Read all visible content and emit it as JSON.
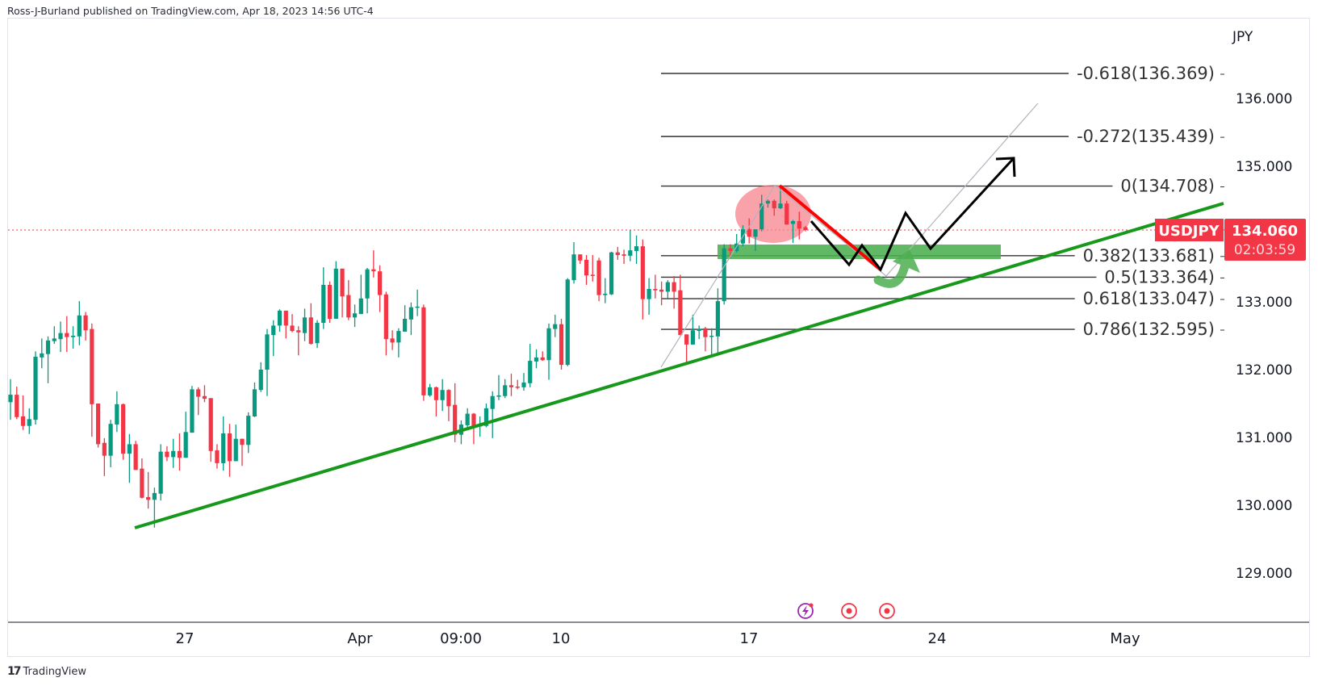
{
  "header": {
    "text": "Ross-J-Burland published on TradingView.com, Apr 18, 2023 14:56 UTC-4"
  },
  "footer": {
    "logo_text": "TradingView",
    "logo_mark": "17"
  },
  "symbol": {
    "name": "USDJPY",
    "last_price": "134.060",
    "countdown": "02:03:59",
    "currency": "JPY"
  },
  "colors": {
    "up": "#089981",
    "down": "#f23645",
    "trendline": "#16991a",
    "zone": "#4caf50",
    "highlight": "#f7838e",
    "bias_arrow": "#000000",
    "fib_line": "#333333"
  },
  "bottom_icons": [
    {
      "name": "lightning-event-icon",
      "color": "#9c27b0"
    },
    {
      "name": "economic-event-icon",
      "color": "#f23645"
    },
    {
      "name": "economic-event-icon",
      "color": "#f23645"
    }
  ],
  "fib_levels": [
    {
      "label": "-0.618(136.369)",
      "price": 136.369
    },
    {
      "label": "-0.272(135.439)",
      "price": 135.439
    },
    {
      "label": "0(134.708)",
      "price": 134.708
    },
    {
      "label": "0.382(133.681)",
      "price": 133.681
    },
    {
      "label": "0.5(133.364)",
      "price": 133.364
    },
    {
      "label": "0.618(133.047)",
      "price": 133.047
    },
    {
      "label": "0.786(132.595)",
      "price": 132.595
    }
  ],
  "chart_data": {
    "type": "candlestick",
    "title": "",
    "symbol": "USDJPY",
    "ylabel": "JPY",
    "ylim": [
      128.4,
      136.5
    ],
    "y_ticks": [
      "136.000",
      "135.000",
      "133.000",
      "132.000",
      "131.000",
      "130.000",
      "129.000"
    ],
    "y_tick_values": [
      136,
      135,
      133,
      132,
      131,
      130,
      129
    ],
    "x_ticks": [
      "27",
      "Apr",
      "09:00",
      "10",
      "17",
      "24",
      "May"
    ],
    "grid": false,
    "ohlc_fields": [
      "open",
      "high",
      "low",
      "close"
    ],
    "candles": [
      [
        131.52,
        131.86,
        131.26,
        131.63
      ],
      [
        131.63,
        131.75,
        131.27,
        131.3
      ],
      [
        131.31,
        131.62,
        131.11,
        131.17
      ],
      [
        131.17,
        131.43,
        131.05,
        131.27
      ],
      [
        131.26,
        132.27,
        131.19,
        132.19
      ],
      [
        132.18,
        132.46,
        132.02,
        132.24
      ],
      [
        132.23,
        132.49,
        131.8,
        132.43
      ],
      [
        132.42,
        132.64,
        132.38,
        132.46
      ],
      [
        132.45,
        132.71,
        132.26,
        132.54
      ],
      [
        132.54,
        132.79,
        132.26,
        132.48
      ],
      [
        132.48,
        132.64,
        132.31,
        132.5
      ],
      [
        132.49,
        133.01,
        132.36,
        132.8
      ],
      [
        132.8,
        132.85,
        132.43,
        132.58
      ],
      [
        132.6,
        132.68,
        131.01,
        131.49
      ],
      [
        131.5,
        131.5,
        130.85,
        130.9
      ],
      [
        130.92,
        130.99,
        130.43,
        130.73
      ],
      [
        130.73,
        131.26,
        130.56,
        131.2
      ],
      [
        131.19,
        131.68,
        131.08,
        131.49
      ],
      [
        131.49,
        131.5,
        130.67,
        130.76
      ],
      [
        130.76,
        131.05,
        130.33,
        130.9
      ],
      [
        130.9,
        130.95,
        130.52,
        130.52
      ],
      [
        130.54,
        130.69,
        130.1,
        130.11
      ],
      [
        130.12,
        130.49,
        129.95,
        130.08
      ],
      [
        130.08,
        130.26,
        129.67,
        130.18
      ],
      [
        130.17,
        130.9,
        130.07,
        130.79
      ],
      [
        130.79,
        130.87,
        130.65,
        130.71
      ],
      [
        130.71,
        130.98,
        130.55,
        130.8
      ],
      [
        130.8,
        131.06,
        130.51,
        130.7
      ],
      [
        130.7,
        131.38,
        130.7,
        131.08
      ],
      [
        131.07,
        131.76,
        131.07,
        131.71
      ],
      [
        131.71,
        131.74,
        131.33,
        131.6
      ],
      [
        131.61,
        131.77,
        131.52,
        131.57
      ],
      [
        131.58,
        131.58,
        130.64,
        130.8
      ],
      [
        130.81,
        130.9,
        130.54,
        130.62
      ],
      [
        130.62,
        131.31,
        130.51,
        131.06
      ],
      [
        131.06,
        131.2,
        130.42,
        130.65
      ],
      [
        130.65,
        131.19,
        130.65,
        130.98
      ],
      [
        130.98,
        130.98,
        130.58,
        130.89
      ],
      [
        130.89,
        131.37,
        130.77,
        131.32
      ],
      [
        131.31,
        131.81,
        131.3,
        131.71
      ],
      [
        131.7,
        132.11,
        131.67,
        132.0
      ],
      [
        132.0,
        132.6,
        131.61,
        132.52
      ],
      [
        132.51,
        132.73,
        132.2,
        132.65
      ],
      [
        132.65,
        132.89,
        132.56,
        132.87
      ],
      [
        132.87,
        132.87,
        132.46,
        132.65
      ],
      [
        132.65,
        132.82,
        132.55,
        132.57
      ],
      [
        132.58,
        132.64,
        132.21,
        132.55
      ],
      [
        132.54,
        132.9,
        132.42,
        132.77
      ],
      [
        132.77,
        132.98,
        132.37,
        132.38
      ],
      [
        132.39,
        132.73,
        132.32,
        132.69
      ],
      [
        132.69,
        133.51,
        132.6,
        133.25
      ],
      [
        133.25,
        133.3,
        132.69,
        132.75
      ],
      [
        132.75,
        133.6,
        132.75,
        133.49
      ],
      [
        133.49,
        133.49,
        132.77,
        133.08
      ],
      [
        133.1,
        133.32,
        132.73,
        132.77
      ],
      [
        132.77,
        132.96,
        132.63,
        132.83
      ],
      [
        132.82,
        133.4,
        132.82,
        133.05
      ],
      [
        133.05,
        133.5,
        132.83,
        133.48
      ],
      [
        133.48,
        133.76,
        133.36,
        133.45
      ],
      [
        133.45,
        133.54,
        132.85,
        133.1
      ],
      [
        133.11,
        133.15,
        132.21,
        132.45
      ],
      [
        132.46,
        132.58,
        132.29,
        132.4
      ],
      [
        132.4,
        132.61,
        132.18,
        132.57
      ],
      [
        132.56,
        132.95,
        132.56,
        132.75
      ],
      [
        132.74,
        132.99,
        132.51,
        132.92
      ],
      [
        132.92,
        133.18,
        132.79,
        132.93
      ],
      [
        132.92,
        132.96,
        131.54,
        131.62
      ],
      [
        131.62,
        131.79,
        131.6,
        131.74
      ],
      [
        131.74,
        131.75,
        131.31,
        131.55
      ],
      [
        131.55,
        131.86,
        131.39,
        131.7
      ],
      [
        131.7,
        131.71,
        131.24,
        131.46
      ],
      [
        131.48,
        131.8,
        130.93,
        131.04
      ],
      [
        131.04,
        131.25,
        130.9,
        131.19
      ],
      [
        131.18,
        131.43,
        131.11,
        131.35
      ],
      [
        131.35,
        131.36,
        130.9,
        131.17
      ],
      [
        131.17,
        131.31,
        131.01,
        131.18
      ],
      [
        131.17,
        131.5,
        131.15,
        131.43
      ],
      [
        131.42,
        131.68,
        130.99,
        131.61
      ],
      [
        131.6,
        131.92,
        131.55,
        131.62
      ],
      [
        131.61,
        131.86,
        131.58,
        131.77
      ],
      [
        131.77,
        131.94,
        131.61,
        131.74
      ],
      [
        131.75,
        131.85,
        131.71,
        131.74
      ],
      [
        131.74,
        131.95,
        131.69,
        131.81
      ],
      [
        131.8,
        132.38,
        131.74,
        132.13
      ],
      [
        132.12,
        132.3,
        132.02,
        132.18
      ],
      [
        132.18,
        132.27,
        132.13,
        132.14
      ],
      [
        132.14,
        132.68,
        131.85,
        132.61
      ],
      [
        132.6,
        132.81,
        132.48,
        132.67
      ],
      [
        132.67,
        132.75,
        132.0,
        132.07
      ],
      [
        132.07,
        133.35,
        132.05,
        133.33
      ],
      [
        133.32,
        133.88,
        133.27,
        133.7
      ],
      [
        133.7,
        133.7,
        133.56,
        133.61
      ],
      [
        133.62,
        133.69,
        133.25,
        133.39
      ],
      [
        133.4,
        133.69,
        133.3,
        133.39
      ],
      [
        133.61,
        133.65,
        133.01,
        133.1
      ],
      [
        133.1,
        133.35,
        132.98,
        133.12
      ],
      [
        133.11,
        133.74,
        133.1,
        133.73
      ],
      [
        133.73,
        133.81,
        133.62,
        133.69
      ],
      [
        133.7,
        133.77,
        133.56,
        133.68
      ],
      [
        133.68,
        134.06,
        133.6,
        133.76
      ],
      [
        133.75,
        133.98,
        133.56,
        133.82
      ],
      [
        133.82,
        133.92,
        132.74,
        133.04
      ],
      [
        133.04,
        133.35,
        132.81,
        133.19
      ],
      [
        133.19,
        133.4,
        133.05,
        133.17
      ],
      [
        133.18,
        133.3,
        132.95,
        133.15
      ],
      [
        133.15,
        133.32,
        133.05,
        133.29
      ],
      [
        133.29,
        133.38,
        132.9,
        133.15
      ],
      [
        133.17,
        133.4,
        132.51,
        132.51
      ],
      [
        132.52,
        132.52,
        132.1,
        132.37
      ],
      [
        132.37,
        132.81,
        132.37,
        132.58
      ],
      [
        132.57,
        132.65,
        132.45,
        132.6
      ],
      [
        132.61,
        132.63,
        132.27,
        132.48
      ],
      [
        132.49,
        132.61,
        132.19,
        132.5
      ],
      [
        132.49,
        133.2,
        132.21,
        133.01
      ],
      [
        133.01,
        133.85,
        132.96,
        133.79
      ],
      [
        133.79,
        133.85,
        133.64,
        133.75
      ],
      [
        133.75,
        134.0,
        133.73,
        133.86
      ],
      [
        133.86,
        134.13,
        133.82,
        134.07
      ],
      [
        134.07,
        134.23,
        133.86,
        133.96
      ],
      [
        133.96,
        134.07,
        133.75,
        134.07
      ],
      [
        134.07,
        134.58,
        134.04,
        134.45
      ],
      [
        134.45,
        134.51,
        134.39,
        134.49
      ],
      [
        134.49,
        134.51,
        134.27,
        134.38
      ],
      [
        134.38,
        134.71,
        134.37,
        134.45
      ],
      [
        134.45,
        134.49,
        134.14,
        134.14
      ],
      [
        134.15,
        134.21,
        133.87,
        134.19
      ],
      [
        134.19,
        134.33,
        133.92,
        134.08
      ],
      [
        134.1,
        134.12,
        134.04,
        134.06
      ]
    ]
  }
}
